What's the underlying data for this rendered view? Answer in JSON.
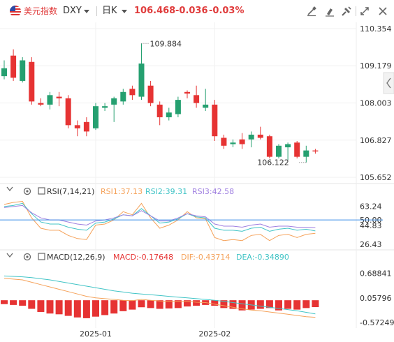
{
  "header": {
    "name": "美元指数",
    "symbol": "DXY",
    "period": "日K",
    "price": "106.468",
    "change": "-0.036",
    "change_pct": "-0.03%"
  },
  "toolbar": {
    "icons": [
      "edit-line-icon",
      "drawing-tool-icon",
      "tools-icon",
      "fullscreen-icon",
      "close-icon"
    ]
  },
  "colors": {
    "up": "#e63333",
    "down": "#25a070",
    "rsi1": "#f5a25a",
    "rsi2": "#41c4c6",
    "rsi3": "#9f7fe0",
    "macd": "#e63333",
    "dif": "#f5a25a",
    "dea": "#41c4c6",
    "ref_line": "#3a8ee6"
  },
  "chart_data": [
    {
      "type": "candlestick",
      "title": "美元指数 DXY 日K",
      "yticks": [
        "110.354",
        "109.179",
        "108.003",
        "106.827",
        "105.652"
      ],
      "ylim": [
        105.652,
        110.354
      ],
      "annotations": [
        {
          "label": "109.884",
          "value": 109.884,
          "kind": "high"
        },
        {
          "label": "106.122",
          "value": 106.122,
          "kind": "low"
        }
      ],
      "xticks": [
        "2025-01",
        "2025-02"
      ],
      "candles": [
        [
          108.85,
          109.35,
          108.75,
          109.1
        ],
        [
          109.5,
          109.7,
          108.7,
          108.8
        ],
        [
          108.7,
          109.45,
          108.65,
          109.35
        ],
        [
          109.3,
          109.45,
          107.95,
          108.05
        ],
        [
          108.0,
          108.15,
          107.9,
          107.95
        ],
        [
          107.95,
          108.35,
          107.8,
          108.25
        ],
        [
          108.2,
          108.35,
          107.9,
          108.15
        ],
        [
          108.15,
          108.25,
          107.2,
          107.3
        ],
        [
          107.3,
          107.45,
          106.95,
          107.2
        ],
        [
          107.4,
          107.55,
          106.95,
          107.1
        ],
        [
          107.2,
          108.0,
          107.15,
          107.9
        ],
        [
          107.85,
          108.0,
          107.75,
          107.9
        ],
        [
          107.95,
          108.2,
          107.4,
          108.15
        ],
        [
          108.05,
          108.45,
          107.95,
          108.35
        ],
        [
          108.45,
          108.55,
          108.1,
          108.25
        ],
        [
          108.2,
          109.884,
          108.1,
          109.25
        ],
        [
          108.55,
          108.7,
          107.9,
          108.0
        ],
        [
          107.95,
          108.05,
          107.3,
          107.55
        ],
        [
          107.55,
          107.85,
          107.45,
          107.7
        ],
        [
          107.65,
          108.2,
          107.55,
          108.1
        ],
        [
          108.35,
          108.4,
          108.15,
          108.3
        ],
        [
          108.25,
          108.55,
          107.85,
          108.0
        ],
        [
          107.85,
          108.45,
          107.75,
          107.95
        ],
        [
          107.95,
          108.1,
          106.8,
          106.95
        ],
        [
          106.9,
          107.0,
          106.55,
          106.65
        ],
        [
          106.7,
          106.85,
          106.6,
          106.75
        ],
        [
          106.85,
          107.05,
          106.55,
          106.7
        ],
        [
          106.85,
          107.1,
          106.6,
          107.0
        ],
        [
          107.0,
          107.25,
          106.85,
          106.9
        ],
        [
          106.95,
          107.0,
          106.25,
          106.3
        ],
        [
          106.3,
          106.7,
          106.25,
          106.65
        ],
        [
          106.6,
          106.75,
          106.2,
          106.7
        ],
        [
          106.75,
          106.8,
          106.25,
          106.3
        ],
        [
          106.3,
          106.65,
          106.122,
          106.5
        ],
        [
          106.5,
          106.55,
          106.4,
          106.47
        ]
      ]
    },
    {
      "type": "line",
      "title": "RSI(7,14,21)",
      "yticks": [
        "63.24",
        "50.00",
        "44.83",
        "26.43"
      ],
      "ylim": [
        26.43,
        69.0
      ],
      "ref_line": 50.0,
      "series": [
        {
          "name": "RSI1",
          "label": "RSI1:37.13",
          "values": [
            65,
            67,
            68,
            52,
            42,
            40,
            40,
            35,
            32,
            31,
            45,
            46,
            50,
            58,
            55,
            66,
            52,
            42,
            45,
            50,
            58,
            52,
            51,
            33,
            30,
            31,
            30,
            35,
            36,
            30,
            35,
            36,
            33,
            36,
            37.13
          ]
        },
        {
          "name": "RSI2",
          "label": "RSI2:39.31",
          "values": [
            63,
            64,
            66,
            56,
            48,
            46,
            46,
            43,
            41,
            40,
            47,
            48,
            51,
            55,
            54,
            61,
            54,
            47,
            48,
            51,
            56,
            53,
            52,
            42,
            40,
            40,
            39,
            42,
            43,
            39,
            41,
            42,
            40,
            41,
            39.31
          ]
        },
        {
          "name": "RSI3",
          "label": "RSI3:42.58",
          "values": [
            62,
            63,
            64,
            57,
            52,
            50,
            50,
            48,
            46,
            45,
            49,
            50,
            52,
            55,
            54,
            59,
            54,
            49,
            49,
            52,
            56,
            54,
            53,
            46,
            44,
            44,
            43,
            45,
            46,
            43,
            44,
            44,
            43,
            43,
            42.58
          ]
        }
      ]
    },
    {
      "type": "bar-line",
      "title": "MACD(12,26,9)",
      "yticks": [
        "0.68841",
        "0.05796",
        "-0.57249"
      ],
      "ylim": [
        -0.64,
        0.86
      ],
      "series": [
        {
          "name": "MACD",
          "label": "MACD:-0.17648",
          "values": [
            -0.1,
            -0.12,
            -0.14,
            -0.22,
            -0.3,
            -0.34,
            -0.36,
            -0.4,
            -0.44,
            -0.46,
            -0.42,
            -0.38,
            -0.34,
            -0.28,
            -0.24,
            -0.18,
            -0.2,
            -0.22,
            -0.21,
            -0.2,
            -0.16,
            -0.14,
            -0.12,
            -0.14,
            -0.2,
            -0.22,
            -0.26,
            -0.24,
            -0.22,
            -0.2,
            -0.26,
            -0.22,
            -0.24,
            -0.2,
            -0.17648
          ]
        },
        {
          "name": "DIF",
          "label": "DIF:-0.43714",
          "values": [
            0.56,
            0.54,
            0.52,
            0.46,
            0.4,
            0.34,
            0.28,
            0.22,
            0.16,
            0.1,
            0.06,
            0.04,
            0.02,
            0.0,
            -0.01,
            0.02,
            0.0,
            -0.02,
            -0.03,
            -0.03,
            -0.03,
            -0.05,
            -0.06,
            -0.1,
            -0.14,
            -0.18,
            -0.22,
            -0.25,
            -0.27,
            -0.3,
            -0.33,
            -0.36,
            -0.39,
            -0.42,
            -0.43714
          ]
        },
        {
          "name": "DEA",
          "label": "DEA:-0.34890",
          "values": [
            0.62,
            0.61,
            0.6,
            0.58,
            0.55,
            0.52,
            0.48,
            0.44,
            0.4,
            0.36,
            0.32,
            0.28,
            0.24,
            0.21,
            0.18,
            0.16,
            0.14,
            0.12,
            0.1,
            0.08,
            0.06,
            0.04,
            0.02,
            0.0,
            -0.03,
            -0.06,
            -0.09,
            -0.12,
            -0.15,
            -0.18,
            -0.21,
            -0.24,
            -0.27,
            -0.31,
            -0.3489
          ]
        }
      ]
    }
  ]
}
